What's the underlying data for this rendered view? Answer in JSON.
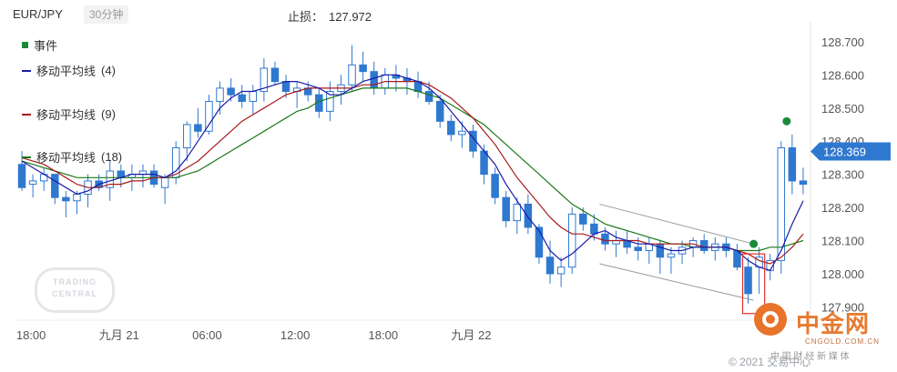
{
  "header": {
    "symbol": "EUR/JPY",
    "timeframe": "30分钟",
    "stop_loss_label": "止损：",
    "stop_loss_value": "127.972"
  },
  "legend": [
    {
      "label": "事件",
      "color": "#1a8a3a",
      "marker": "square"
    },
    {
      "label": "移动平均线",
      "period": "(4)",
      "color": "#1a1aa8",
      "marker": "line"
    },
    {
      "label": "移动平均线",
      "period": "(9)",
      "color": "#a81a1a",
      "marker": "line"
    },
    {
      "label": "移动平均线",
      "period": "(18)",
      "color": "#1a7a1a",
      "marker": "line"
    }
  ],
  "watermarks": {
    "trading_central_line1": "TRADING",
    "trading_central_line2": "CENTRAL",
    "cngold_name": "中金网",
    "cngold_url": "CNGOLD.COM.CN",
    "cngold_tagline": "中 国 财 经 新 媒 体",
    "copyright": "© 2021 交易中心"
  },
  "chart_data": {
    "type": "candlestick",
    "ylim": [
      127.86,
      128.76
    ],
    "yticks": [
      "128.700",
      "128.600",
      "128.500",
      "128.400",
      "128.300",
      "128.200",
      "128.100",
      "128.000",
      "127.900"
    ],
    "x_tick_labels": [
      "18:00",
      "九月 21",
      "06:00",
      "12:00",
      "18:00",
      "九月 22"
    ],
    "x_tick_index": [
      1,
      9,
      17,
      25,
      33,
      41
    ],
    "current_price": "128.369",
    "colors": {
      "candle": "#2f78cf",
      "ma4": "#1a1aa8",
      "ma9": "#a81a1a",
      "ma18": "#1a7a1a",
      "event": "#1a8a3a",
      "price_tag": "#2f78cf",
      "channel": "#999999",
      "highlight": "#e03030"
    },
    "candles": [
      [
        128.33,
        128.37,
        128.25,
        128.26
      ],
      [
        128.27,
        128.3,
        128.23,
        128.28
      ],
      [
        128.28,
        128.32,
        128.25,
        128.3
      ],
      [
        128.3,
        128.3,
        128.21,
        128.23
      ],
      [
        128.23,
        128.25,
        128.17,
        128.22
      ],
      [
        128.22,
        128.25,
        128.18,
        128.24
      ],
      [
        128.24,
        128.3,
        128.2,
        128.28
      ],
      [
        128.28,
        128.3,
        128.25,
        128.26
      ],
      [
        128.26,
        128.34,
        128.22,
        128.31
      ],
      [
        128.31,
        128.33,
        128.26,
        128.29
      ],
      [
        128.29,
        128.33,
        128.25,
        128.3
      ],
      [
        128.3,
        128.33,
        128.26,
        128.31
      ],
      [
        128.31,
        128.33,
        128.26,
        128.27
      ],
      [
        128.26,
        128.3,
        128.21,
        128.29
      ],
      [
        128.29,
        128.4,
        128.27,
        128.38
      ],
      [
        128.38,
        128.46,
        128.34,
        128.45
      ],
      [
        128.45,
        128.5,
        128.41,
        128.43
      ],
      [
        128.43,
        128.54,
        128.42,
        128.52
      ],
      [
        128.52,
        128.58,
        128.48,
        128.56
      ],
      [
        128.56,
        128.59,
        128.52,
        128.54
      ],
      [
        128.54,
        128.57,
        128.5,
        128.52
      ],
      [
        128.52,
        128.57,
        128.48,
        128.55
      ],
      [
        128.55,
        128.65,
        128.52,
        128.62
      ],
      [
        128.62,
        128.64,
        128.57,
        128.58
      ],
      [
        128.58,
        128.6,
        128.53,
        128.55
      ],
      [
        128.55,
        128.58,
        128.5,
        128.56
      ],
      [
        128.56,
        128.58,
        128.52,
        128.54
      ],
      [
        128.54,
        128.56,
        128.47,
        128.49
      ],
      [
        128.49,
        128.58,
        128.46,
        128.55
      ],
      [
        128.55,
        128.6,
        128.51,
        128.57
      ],
      [
        128.57,
        128.69,
        128.55,
        128.63
      ],
      [
        128.63,
        128.67,
        128.58,
        128.61
      ],
      [
        128.61,
        128.64,
        128.54,
        128.56
      ],
      [
        128.56,
        128.62,
        128.54,
        128.6
      ],
      [
        128.6,
        128.63,
        128.55,
        128.59
      ],
      [
        128.59,
        128.62,
        128.54,
        128.58
      ],
      [
        128.58,
        128.61,
        128.53,
        128.55
      ],
      [
        128.55,
        128.58,
        128.51,
        128.52
      ],
      [
        128.52,
        128.54,
        128.44,
        128.46
      ],
      [
        128.46,
        128.48,
        128.4,
        128.42
      ],
      [
        128.42,
        128.46,
        128.38,
        128.43
      ],
      [
        128.43,
        128.45,
        128.35,
        128.37
      ],
      [
        128.37,
        128.39,
        128.27,
        128.3
      ],
      [
        128.3,
        128.32,
        128.21,
        128.23
      ],
      [
        128.23,
        128.25,
        128.14,
        128.16
      ],
      [
        128.16,
        128.23,
        128.12,
        128.21
      ],
      [
        128.21,
        128.24,
        128.12,
        128.14
      ],
      [
        128.14,
        128.15,
        128.03,
        128.05
      ],
      [
        128.05,
        128.1,
        127.97,
        128.0
      ],
      [
        128.0,
        128.05,
        127.96,
        128.02
      ],
      [
        128.02,
        128.2,
        128.0,
        128.18
      ],
      [
        128.18,
        128.2,
        128.13,
        128.15
      ],
      [
        128.15,
        128.18,
        128.1,
        128.12
      ],
      [
        128.12,
        128.14,
        128.07,
        128.09
      ],
      [
        128.09,
        128.13,
        128.05,
        128.1
      ],
      [
        128.1,
        128.13,
        128.06,
        128.08
      ],
      [
        128.08,
        128.11,
        128.04,
        128.07
      ],
      [
        128.07,
        128.11,
        128.03,
        128.09
      ],
      [
        128.09,
        128.1,
        128.0,
        128.05
      ],
      [
        128.05,
        128.08,
        128.0,
        128.06
      ],
      [
        128.06,
        128.1,
        128.03,
        128.08
      ],
      [
        128.08,
        128.11,
        128.05,
        128.1
      ],
      [
        128.1,
        128.12,
        128.06,
        128.07
      ],
      [
        128.07,
        128.11,
        128.04,
        128.09
      ],
      [
        128.09,
        128.11,
        128.05,
        128.07
      ],
      [
        128.07,
        128.09,
        128.01,
        128.02
      ],
      [
        128.02,
        128.05,
        127.91,
        127.94
      ],
      [
        128.02,
        128.08,
        127.94,
        128.05
      ],
      [
        128.01,
        128.06,
        127.98,
        128.04
      ],
      [
        128.04,
        128.4,
        128.0,
        128.38
      ],
      [
        128.38,
        128.42,
        128.24,
        128.28
      ],
      [
        128.28,
        128.32,
        128.24,
        128.27
      ]
    ],
    "ma4": [
      128.34,
      128.32,
      128.3,
      128.28,
      128.26,
      128.24,
      128.25,
      128.27,
      128.28,
      128.29,
      128.3,
      128.3,
      128.3,
      128.29,
      128.31,
      128.35,
      128.4,
      128.45,
      128.5,
      128.53,
      128.55,
      128.55,
      128.56,
      128.57,
      128.58,
      128.58,
      128.57,
      128.56,
      128.54,
      128.54,
      128.56,
      128.58,
      128.59,
      128.6,
      128.6,
      128.59,
      128.58,
      128.56,
      128.53,
      128.49,
      128.45,
      128.41,
      128.37,
      128.33,
      128.27,
      128.22,
      128.17,
      128.13,
      128.07,
      128.04,
      128.06,
      128.09,
      128.12,
      128.13,
      128.11,
      128.1,
      128.09,
      128.09,
      128.08,
      128.07,
      128.07,
      128.08,
      128.08,
      128.08,
      128.08,
      128.07,
      128.04,
      128.02,
      128.01,
      128.07,
      128.15,
      128.22
    ],
    "ma9": [
      128.35,
      128.34,
      128.33,
      128.31,
      128.29,
      128.27,
      128.26,
      128.26,
      128.27,
      128.27,
      128.28,
      128.28,
      128.29,
      128.29,
      128.3,
      128.32,
      128.34,
      128.37,
      128.4,
      128.43,
      128.46,
      128.48,
      128.5,
      128.52,
      128.54,
      128.55,
      128.56,
      128.56,
      128.56,
      128.56,
      128.56,
      128.57,
      128.57,
      128.58,
      128.58,
      128.58,
      128.58,
      128.57,
      128.55,
      128.53,
      128.5,
      128.47,
      128.43,
      128.39,
      128.34,
      128.29,
      128.25,
      128.21,
      128.17,
      128.14,
      128.12,
      128.12,
      128.11,
      128.1,
      128.1,
      128.1,
      128.1,
      128.09,
      128.09,
      128.09,
      128.09,
      128.09,
      128.08,
      128.08,
      128.08,
      128.07,
      128.06,
      128.04,
      128.03,
      128.05,
      128.08,
      128.12
    ],
    "ma18": [
      128.34,
      128.33,
      128.32,
      128.31,
      128.3,
      128.29,
      128.29,
      128.29,
      128.29,
      128.29,
      128.29,
      128.29,
      128.29,
      128.29,
      128.29,
      128.3,
      128.31,
      128.33,
      128.35,
      128.37,
      128.39,
      128.41,
      128.43,
      128.45,
      128.47,
      128.49,
      128.5,
      128.52,
      128.53,
      128.54,
      128.55,
      128.56,
      128.56,
      128.56,
      128.56,
      128.56,
      128.55,
      128.54,
      128.53,
      128.51,
      128.49,
      128.47,
      128.45,
      128.42,
      128.39,
      128.36,
      128.33,
      128.3,
      128.27,
      128.24,
      128.21,
      128.19,
      128.17,
      128.15,
      128.14,
      128.13,
      128.12,
      128.11,
      128.1,
      128.09,
      128.09,
      128.08,
      128.08,
      128.08,
      128.08,
      128.07,
      128.07,
      128.07,
      128.08,
      128.08,
      128.09,
      128.1
    ],
    "event_markers": [
      {
        "x": 66.5,
        "price": 128.09
      },
      {
        "x": 69.5,
        "price": 128.46
      }
    ],
    "channel": {
      "upper": [
        [
          52.5,
          128.21
        ],
        [
          66.5,
          128.09
        ]
      ],
      "lower": [
        [
          52.5,
          128.03
        ],
        [
          66.5,
          127.92
        ]
      ]
    },
    "highlight_range": {
      "from": 65.5,
      "to": 67.5,
      "low": 127.88,
      "high": 128.06
    }
  }
}
